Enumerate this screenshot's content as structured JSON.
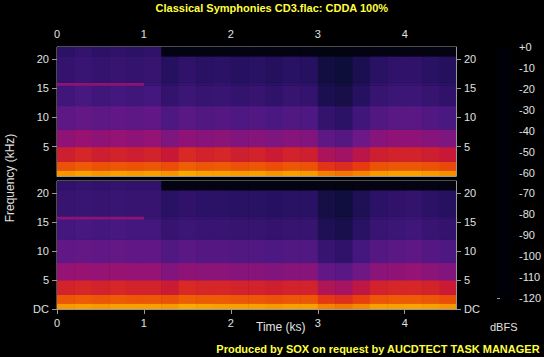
{
  "chart_data": {
    "type": "heatmap",
    "title": "Classical Symphonies CD3.flac: CDDA 100%",
    "footer": "Produced by SOX on request by AUCDTECT TASK MANAGER",
    "x_label": "Time (ks)",
    "y_label": "Frequency (kHz)",
    "xlim": [
      0,
      4.59
    ],
    "xticks": [
      0,
      1,
      2,
      3,
      4
    ],
    "ylim": [
      0,
      22.05
    ],
    "time_bins": [
      0,
      0.2,
      0.4,
      0.6,
      0.8,
      1.0,
      1.2,
      1.4,
      1.6,
      1.8,
      2.0,
      2.2,
      2.4,
      2.6,
      2.8,
      3.0,
      3.2,
      3.4,
      3.6,
      3.8,
      4.0,
      4.2,
      4.4,
      4.59
    ],
    "freq_bins": [
      0,
      1,
      2.5,
      5,
      8,
      12,
      15.5,
      16,
      20.5,
      22.05
    ],
    "panels": [
      {
        "yticks": [
          5,
          10,
          15,
          20
        ],
        "values": [
          [
            -32,
            -30,
            -32,
            -30,
            -31,
            -30,
            -32,
            -28,
            -30,
            -30,
            -31,
            -30,
            -32,
            -30,
            -31,
            -36,
            -38,
            -35,
            -31,
            -30,
            -30,
            -31,
            -33
          ],
          [
            -45,
            -43,
            -45,
            -44,
            -45,
            -44,
            -46,
            -42,
            -44,
            -43,
            -45,
            -44,
            -46,
            -44,
            -45,
            -52,
            -54,
            -50,
            -45,
            -44,
            -44,
            -45,
            -47
          ],
          [
            -58,
            -56,
            -58,
            -57,
            -58,
            -57,
            -60,
            -55,
            -57,
            -56,
            -58,
            -57,
            -59,
            -57,
            -58,
            -66,
            -68,
            -63,
            -58,
            -57,
            -57,
            -58,
            -60
          ],
          [
            -72,
            -70,
            -72,
            -71,
            -72,
            -71,
            -76,
            -72,
            -74,
            -73,
            -75,
            -74,
            -76,
            -74,
            -75,
            -84,
            -86,
            -80,
            -74,
            -72,
            -72,
            -74,
            -76
          ],
          [
            -84,
            -82,
            -84,
            -83,
            -84,
            -83,
            -88,
            -85,
            -87,
            -86,
            -88,
            -87,
            -89,
            -87,
            -88,
            -96,
            -98,
            -92,
            -87,
            -85,
            -85,
            -87,
            -89
          ],
          [
            -92,
            -90,
            -92,
            -91,
            -92,
            -91,
            -96,
            -93,
            -95,
            -94,
            -96,
            -95,
            -97,
            -95,
            -96,
            -104,
            -106,
            -100,
            -95,
            -93,
            -93,
            -95,
            -97
          ],
          [
            -72,
            -72,
            -72,
            -72,
            -72,
            -94,
            -98,
            -95,
            -97,
            -96,
            -98,
            -97,
            -99,
            -97,
            -98,
            -106,
            -108,
            -102,
            -97,
            -95,
            -95,
            -97,
            -99
          ],
          [
            -96,
            -94,
            -96,
            -95,
            -96,
            -95,
            -100,
            -97,
            -99,
            -98,
            -100,
            -99,
            -101,
            -99,
            -100,
            -108,
            -110,
            -104,
            -99,
            -97,
            -97,
            -99,
            -101
          ],
          [
            -98,
            -96,
            -98,
            -97,
            -98,
            -97,
            -118,
            -118,
            -118,
            -118,
            -118,
            -118,
            -118,
            -118,
            -118,
            -118,
            -118,
            -118,
            -118,
            -118,
            -118,
            -118,
            -118
          ]
        ]
      },
      {
        "yticks": [
          {
            "value": 0,
            "label": "DC"
          },
          5,
          10,
          15,
          20
        ],
        "values": [
          [
            -31,
            -30,
            -31,
            -30,
            -30,
            -30,
            -31,
            -28,
            -29,
            -30,
            -30,
            -30,
            -31,
            -30,
            -30,
            -35,
            -37,
            -34,
            -30,
            -30,
            -29,
            -30,
            -32
          ],
          [
            -44,
            -43,
            -44,
            -43,
            -44,
            -44,
            -45,
            -42,
            -43,
            -43,
            -44,
            -44,
            -45,
            -44,
            -44,
            -51,
            -53,
            -49,
            -44,
            -43,
            -43,
            -44,
            -46
          ],
          [
            -57,
            -56,
            -57,
            -56,
            -57,
            -57,
            -59,
            -55,
            -56,
            -56,
            -57,
            -57,
            -58,
            -57,
            -57,
            -65,
            -67,
            -62,
            -57,
            -56,
            -56,
            -57,
            -59
          ],
          [
            -71,
            -70,
            -71,
            -70,
            -71,
            -71,
            -75,
            -72,
            -73,
            -73,
            -74,
            -74,
            -75,
            -74,
            -74,
            -83,
            -85,
            -79,
            -73,
            -72,
            -71,
            -73,
            -75
          ],
          [
            -83,
            -82,
            -83,
            -82,
            -83,
            -83,
            -87,
            -85,
            -86,
            -86,
            -87,
            -87,
            -88,
            -87,
            -87,
            -95,
            -97,
            -91,
            -86,
            -85,
            -84,
            -86,
            -88
          ],
          [
            -91,
            -90,
            -91,
            -90,
            -91,
            -91,
            -95,
            -93,
            -94,
            -94,
            -95,
            -95,
            -96,
            -95,
            -95,
            -103,
            -105,
            -99,
            -94,
            -93,
            -92,
            -94,
            -96
          ],
          [
            -73,
            -73,
            -73,
            -73,
            -73,
            -94,
            -97,
            -95,
            -96,
            -96,
            -97,
            -97,
            -98,
            -97,
            -97,
            -105,
            -107,
            -101,
            -96,
            -95,
            -94,
            -96,
            -98
          ],
          [
            -95,
            -94,
            -95,
            -94,
            -95,
            -95,
            -99,
            -97,
            -98,
            -98,
            -99,
            -99,
            -100,
            -99,
            -99,
            -107,
            -109,
            -103,
            -98,
            -97,
            -96,
            -98,
            -100
          ],
          [
            -97,
            -96,
            -97,
            -96,
            -97,
            -97,
            -118,
            -118,
            -118,
            -118,
            -118,
            -118,
            -118,
            -118,
            -118,
            -118,
            -118,
            -118,
            -118,
            -118,
            -118,
            -118,
            -118
          ]
        ]
      }
    ],
    "colorbar": {
      "label": "dBFS",
      "range": [
        -120,
        0
      ],
      "ticks": [
        {
          "value": 0,
          "label": "+0"
        },
        -10,
        -20,
        -30,
        -40,
        -50,
        -60,
        -70,
        -80,
        -90,
        -100,
        -110,
        -120
      ]
    }
  }
}
